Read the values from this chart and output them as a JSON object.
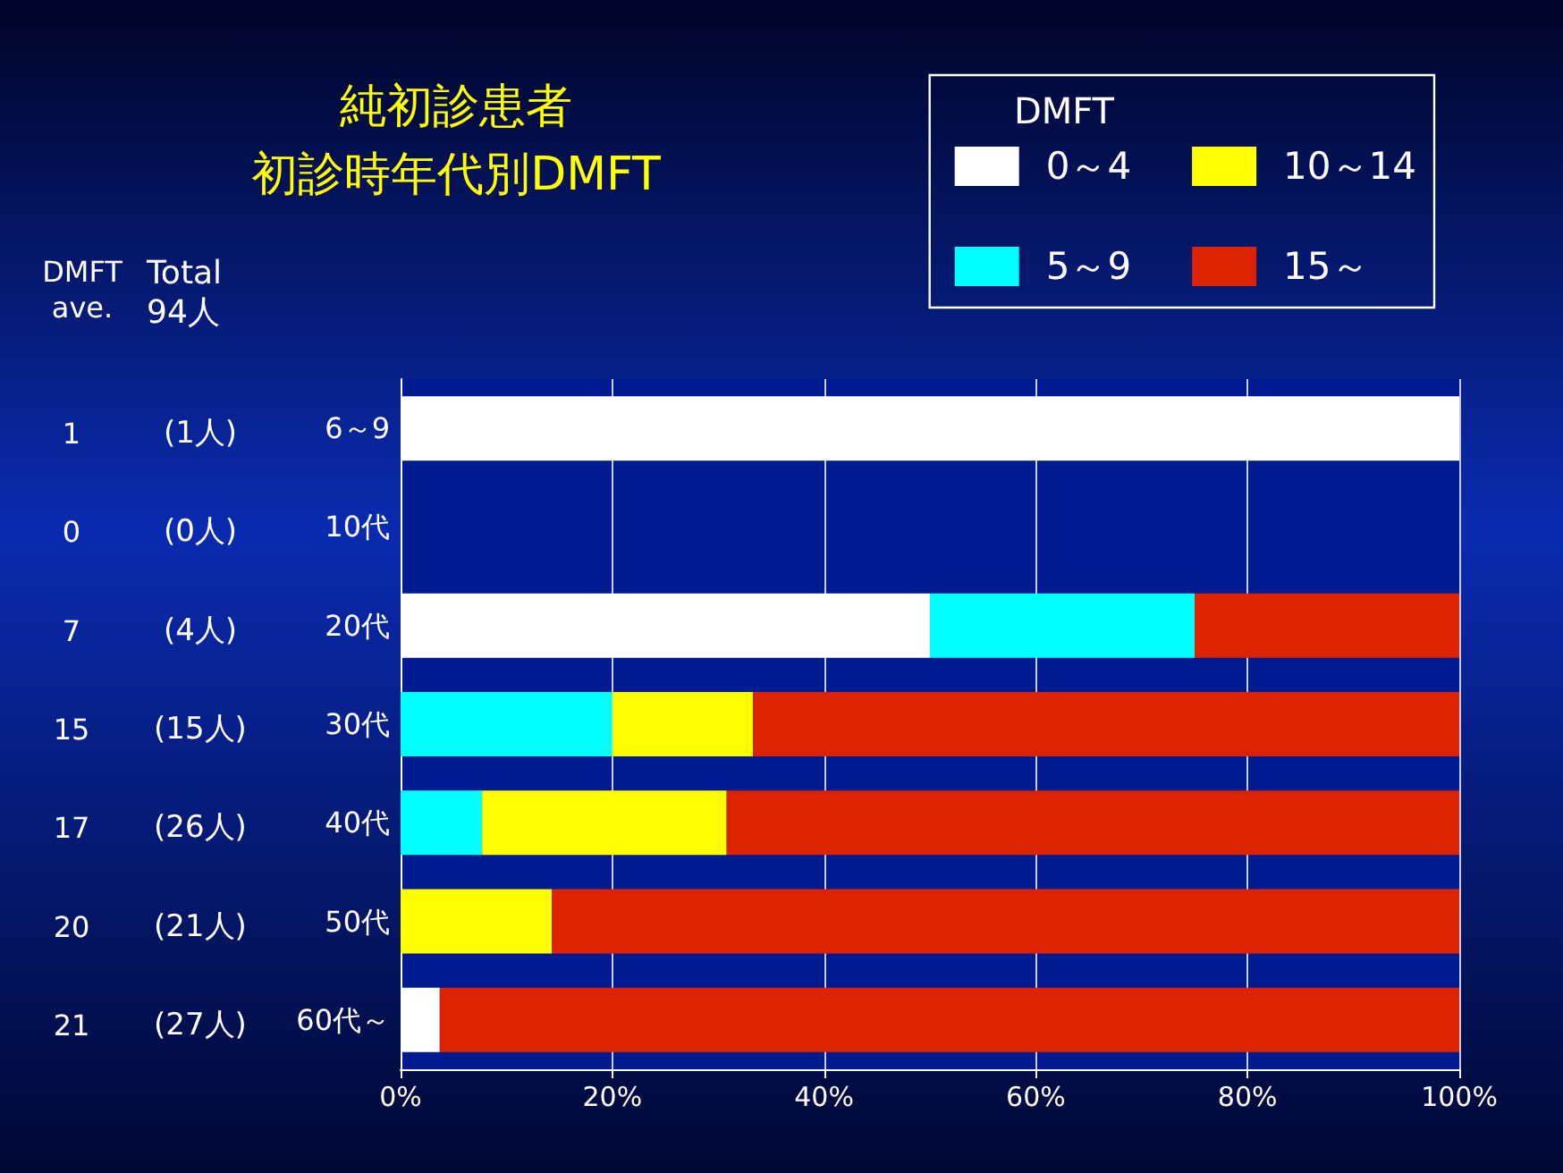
{
  "chart_data": {
    "type": "bar",
    "stacked": true,
    "orientation": "horizontal",
    "title": "純初診患者",
    "subtitle": "初診時年代別DMFT",
    "legend_title": "DMFT",
    "categories": [
      "6～9",
      "10代",
      "20代",
      "30代",
      "40代",
      "50代",
      "60代～"
    ],
    "series": [
      {
        "name": "0～4",
        "color": "#ffffff",
        "values": [
          100,
          0,
          50,
          0,
          0,
          0,
          3.7
        ]
      },
      {
        "name": "5～9",
        "color": "#00ffff",
        "values": [
          0,
          0,
          25,
          20,
          7.7,
          0,
          0
        ]
      },
      {
        "name": "10～14",
        "color": "#ffff00",
        "values": [
          0,
          0,
          0,
          13.3,
          23.1,
          14.3,
          0
        ]
      },
      {
        "name": "15～",
        "color": "#dd2200",
        "values": [
          0,
          0,
          25,
          66.7,
          69.2,
          85.7,
          96.3
        ]
      }
    ],
    "xlim": [
      0,
      100
    ],
    "xticks": [
      {
        "value": 0,
        "label": "0%"
      },
      {
        "value": 20,
        "label": "20%"
      },
      {
        "value": 40,
        "label": "40%"
      },
      {
        "value": 60,
        "label": "60%"
      },
      {
        "value": 80,
        "label": "80%"
      },
      {
        "value": 100,
        "label": "100%"
      }
    ],
    "grid": "x",
    "legend": "top right",
    "annotations": [
      "DMFT\nave.",
      "Total\n94人",
      "1",
      "(1人)",
      "0",
      "(0人)",
      "7",
      "(4人)",
      "15",
      "(15人)",
      "17",
      "(26人)",
      "20",
      "(21人)",
      "21",
      "(27人)"
    ]
  }
}
